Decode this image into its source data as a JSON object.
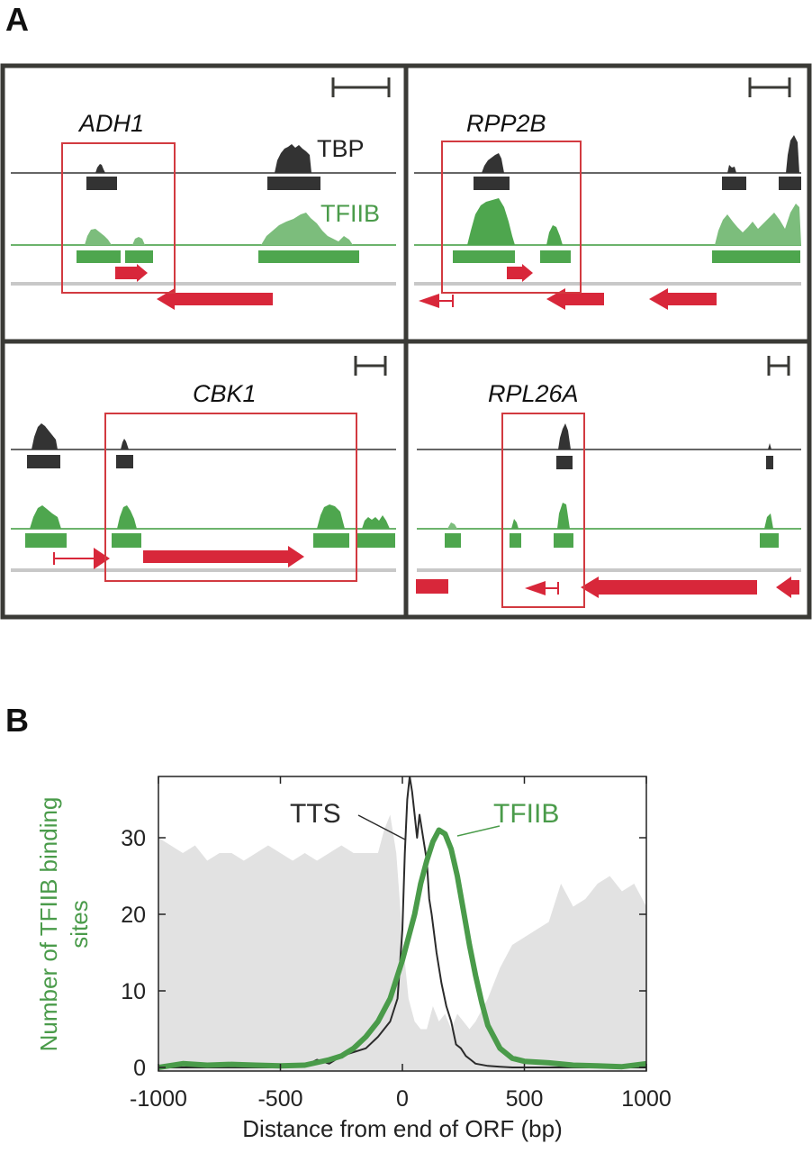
{
  "figure": {
    "panel_a_letter": "A",
    "panel_b_letter": "B",
    "colors": {
      "tbp": "#333333",
      "tfiib": "#4a9b4a",
      "tfiib_bar": "#4ea64e",
      "gene": "#d8273a",
      "box": "#d23a40",
      "frame": "#3a3a36",
      "genome_line": "#c8c8c8",
      "shade": "#e2e2e2"
    },
    "track_labels": {
      "tbp": "TBP",
      "tfiib": "TFIIB"
    },
    "panels": [
      {
        "gene": "ADH1"
      },
      {
        "gene": "RPP2B"
      },
      {
        "gene": "CBK1"
      },
      {
        "gene": "RPL26A"
      }
    ]
  },
  "chart_data": {
    "type": "line",
    "title": "",
    "xlabel": "Distance from end of ORF (bp)",
    "ylabel": "Number of TFIIB binding sites",
    "xlim": [
      -1000,
      1000
    ],
    "ylim": [
      0,
      38
    ],
    "x_ticks": [
      "-1000",
      "-500",
      "0",
      "500",
      "1000"
    ],
    "y_ticks": [
      "0",
      "10",
      "20",
      "30"
    ],
    "series": [
      {
        "name": "TFIIB",
        "color": "#4a9b4a",
        "x": [
          -1000,
          -900,
          -800,
          -700,
          -600,
          -500,
          -400,
          -300,
          -250,
          -200,
          -150,
          -100,
          -50,
          0,
          25,
          50,
          75,
          100,
          125,
          150,
          175,
          200,
          225,
          250,
          275,
          300,
          325,
          350,
          400,
          450,
          500,
          600,
          700,
          800,
          900,
          1000
        ],
        "values": [
          0,
          0.5,
          0.3,
          0.4,
          0.3,
          0.2,
          0.3,
          1,
          1.5,
          2.5,
          4,
          6,
          9,
          14,
          17,
          20,
          24,
          27,
          29.5,
          31,
          30.5,
          28.5,
          25,
          20.5,
          16,
          12,
          8.5,
          5.5,
          2.5,
          1.2,
          0.8,
          0.6,
          0.3,
          0.2,
          0.1,
          0.5
        ]
      },
      {
        "name": "TTS",
        "color": "#2b2b2b",
        "x": [
          -1000,
          -800,
          -600,
          -500,
          -400,
          -350,
          -300,
          -250,
          -200,
          -150,
          -100,
          -50,
          -20,
          0,
          10,
          20,
          30,
          40,
          50,
          60,
          70,
          80,
          90,
          100,
          110,
          120,
          140,
          160,
          180,
          200,
          220,
          240,
          260,
          280,
          300,
          350,
          400,
          450,
          500,
          1000
        ],
        "values": [
          0,
          0,
          0,
          0,
          0.2,
          1,
          0.5,
          1.5,
          2,
          2.5,
          4,
          6,
          9,
          18,
          28,
          35,
          38,
          36,
          33,
          30,
          33,
          31,
          29,
          27,
          22,
          20,
          15,
          11,
          8,
          6,
          3,
          2.5,
          1.5,
          1,
          0.5,
          0.2,
          0.1,
          0,
          0,
          0
        ]
      }
    ],
    "background_profile": {
      "x": [
        -1000,
        -950,
        -900,
        -850,
        -800,
        -750,
        -700,
        -650,
        -600,
        -550,
        -500,
        -450,
        -400,
        -350,
        -300,
        -250,
        -200,
        -150,
        -100,
        -75,
        -50,
        -25,
        0,
        25,
        50,
        75,
        100,
        125,
        150,
        175,
        200,
        225,
        250,
        275,
        300,
        350,
        400,
        450,
        500,
        550,
        600,
        650,
        700,
        750,
        800,
        850,
        900,
        950,
        1000
      ],
      "values": [
        30,
        29,
        28,
        29,
        27,
        28,
        28,
        27,
        28,
        29,
        28,
        27,
        28,
        27,
        28,
        29,
        28,
        28,
        28,
        31,
        33,
        28,
        17,
        9,
        6,
        5,
        5,
        8,
        6,
        7,
        5,
        7,
        6,
        5,
        6,
        9,
        13,
        16,
        17,
        18,
        19,
        24,
        21,
        22,
        24,
        25,
        23,
        24,
        21
      ]
    }
  }
}
